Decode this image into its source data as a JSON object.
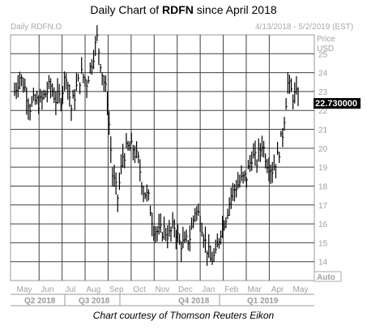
{
  "header": {
    "title_prefix": "Daily Chart of ",
    "ticker": "RDFN",
    "title_suffix": " since April 2018",
    "symbol_label": "Daily RDFN.O",
    "date_range": "4/13/2018 - 5/2/2019 (EST)"
  },
  "footer": {
    "caption": "Chart courtesy of Thomson Reuters Eikon"
  },
  "chart_data": {
    "type": "line",
    "style": "ohlc-bars",
    "title": "Daily Chart of RDFN since April 2018",
    "ylabel": "Price USD",
    "ylabel_lines": [
      "Price",
      "USD"
    ],
    "ylim": [
      13,
      26
    ],
    "y_ticks": [
      14,
      15,
      16,
      17,
      18,
      19,
      20,
      21,
      22,
      23,
      24,
      25
    ],
    "grid": true,
    "x_months": [
      "May",
      "Jun",
      "Jul",
      "Aug",
      "Sep",
      "Oct",
      "Nov",
      "Dec",
      "Jan",
      "Feb",
      "Mar",
      "Apr",
      "May"
    ],
    "quarters": [
      "Q2 2018",
      "Q3 2018",
      "Q4 2018",
      "Q1 2019"
    ],
    "last_price_label": "22.730000",
    "last_price": 22.73,
    "scale_mode": "Auto",
    "line_color": "#000000",
    "label_bg": "#000000",
    "label_color": "#ffffff",
    "x": [
      "2018-04-13",
      "2018-04-20",
      "2018-04-27",
      "2018-05-04",
      "2018-05-11",
      "2018-05-18",
      "2018-05-25",
      "2018-06-01",
      "2018-06-08",
      "2018-06-15",
      "2018-06-22",
      "2018-06-29",
      "2018-07-06",
      "2018-07-13",
      "2018-07-20",
      "2018-07-27",
      "2018-08-03",
      "2018-08-10",
      "2018-08-17",
      "2018-08-24",
      "2018-08-31",
      "2018-09-07",
      "2018-09-14",
      "2018-09-21",
      "2018-09-28",
      "2018-10-05",
      "2018-10-12",
      "2018-10-19",
      "2018-10-26",
      "2018-11-02",
      "2018-11-09",
      "2018-11-16",
      "2018-11-23",
      "2018-11-30",
      "2018-12-07",
      "2018-12-14",
      "2018-12-21",
      "2018-12-28",
      "2019-01-04",
      "2019-01-11",
      "2019-01-18",
      "2019-01-25",
      "2019-02-01",
      "2019-02-08",
      "2019-02-15",
      "2019-02-22",
      "2019-03-01",
      "2019-03-08",
      "2019-03-15",
      "2019-03-22",
      "2019-03-29",
      "2019-04-05",
      "2019-04-12",
      "2019-04-19",
      "2019-04-26",
      "2019-05-02"
    ],
    "values": [
      23.0,
      23.8,
      23.2,
      22.2,
      22.5,
      22.4,
      22.9,
      23.3,
      22.6,
      22.7,
      24.0,
      22.1,
      23.2,
      23.9,
      23.5,
      24.6,
      25.8,
      24.0,
      22.6,
      18.6,
      17.4,
      19.6,
      20.0,
      20.0,
      19.3,
      17.8,
      17.3,
      15.8,
      15.5,
      15.7,
      15.4,
      15.9,
      15.0,
      14.9,
      15.3,
      16.7,
      16.4,
      15.0,
      14.1,
      14.3,
      15.7,
      16.4,
      17.5,
      18.0,
      18.3,
      18.5,
      19.6,
      19.3,
      20.3,
      19.3,
      18.9,
      19.5,
      20.8,
      23.4,
      22.8,
      22.73
    ]
  }
}
